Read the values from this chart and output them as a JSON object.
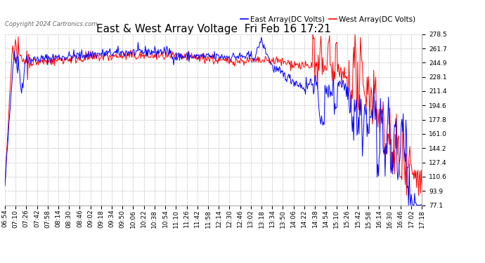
{
  "title": "East & West Array Voltage  Fri Feb 16 17:21",
  "copyright": "Copyright 2024 Cartronics.com",
  "legend_east": "East Array(DC Volts)",
  "legend_west": "West Array(DC Volts)",
  "east_color": "blue",
  "west_color": "red",
  "background_color": "#ffffff",
  "grid_color": "#bbbbbb",
  "ylim": [
    77.1,
    278.5
  ],
  "yticks": [
    77.1,
    93.9,
    110.6,
    127.4,
    144.2,
    161.0,
    177.8,
    194.6,
    211.4,
    228.1,
    244.9,
    261.7,
    278.5
  ],
  "title_fontsize": 11,
  "legend_fontsize": 7.5,
  "tick_fontsize": 6.5,
  "copyright_fontsize": 6,
  "xtick_labels": [
    "06:54",
    "07:10",
    "07:26",
    "07:42",
    "07:58",
    "08:14",
    "08:30",
    "08:46",
    "09:02",
    "09:18",
    "09:34",
    "09:50",
    "10:06",
    "10:22",
    "10:38",
    "10:54",
    "11:10",
    "11:26",
    "11:42",
    "11:58",
    "12:14",
    "12:30",
    "12:46",
    "13:02",
    "13:18",
    "13:34",
    "13:50",
    "14:06",
    "14:22",
    "14:38",
    "14:54",
    "15:10",
    "15:26",
    "15:42",
    "15:58",
    "16:14",
    "16:30",
    "16:46",
    "17:02",
    "17:18"
  ],
  "n_points": 624,
  "seed": 42
}
